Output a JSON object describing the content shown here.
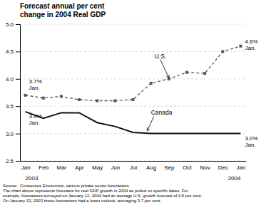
{
  "chart_data": {
    "type": "line",
    "title": "Forecast annual per cent\nchange in 2004 Real GDP",
    "categories": [
      "Jan",
      "Feb",
      "Mar",
      "Apr",
      "May",
      "Jun",
      "Jul",
      "Aug",
      "Sep",
      "Oct",
      "Nov",
      "Dec",
      "Jan"
    ],
    "period_labels": [
      "2003",
      "2004"
    ],
    "series": [
      {
        "name": "U.S.",
        "color": "#555555",
        "line_style": "dashed",
        "marker": "square",
        "values": [
          3.7,
          3.65,
          3.68,
          3.62,
          3.6,
          3.6,
          3.62,
          3.92,
          4.0,
          4.12,
          4.1,
          4.5,
          4.6
        ],
        "start_label": "3.7%\nJan.",
        "end_label": "4.6%\nJan."
      },
      {
        "name": "Canada",
        "color": "#111111",
        "line_style": "solid",
        "marker": "none",
        "values": [
          3.4,
          3.28,
          3.38,
          3.38,
          3.2,
          3.13,
          3.02,
          3.0,
          3.0,
          3.0,
          3.0,
          3.0,
          3.0
        ],
        "start_label": "3.4%\nJan.",
        "end_label": "3.0%\nJan."
      }
    ],
    "ylim": [
      2.5,
      5.0
    ],
    "yticks": [
      2.5,
      {
        "value": 3.0,
        "label": "3.0"
      },
      3.5,
      {
        "value": 4.0,
        "label": "4.0"
      },
      4.5,
      {
        "value": 5.0,
        "label": "5.0"
      }
    ],
    "grid": true,
    "footnote": [
      "Source:  Consensus Economics, various private sector forecasters",
      "The chart above represents forecasts for real GDP growth in 2004 as polled on specific dates. For",
      "example, forecasters surveyed on January 12, 2004 had an average U.S. growth forecast of 4.6 per cent.",
      "On January 13, 2003 these forecasters had a lower outlook, averaging 3.7 per cent."
    ]
  }
}
